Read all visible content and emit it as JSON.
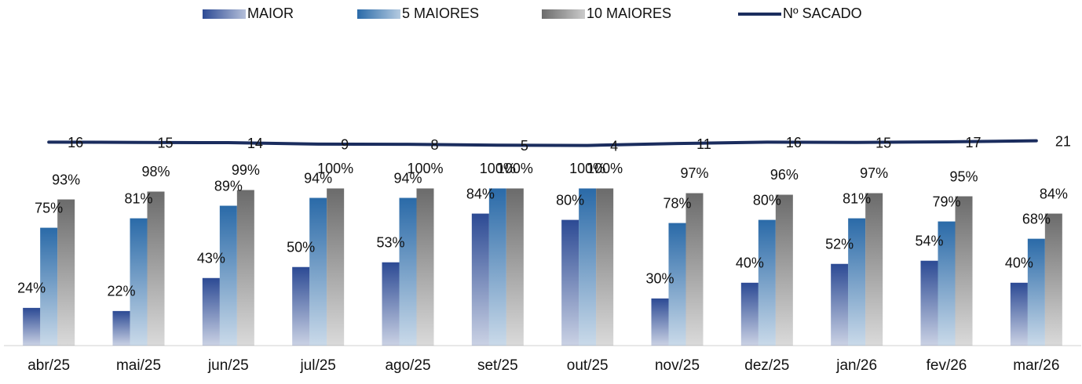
{
  "chart_data": {
    "type": "bar-line",
    "categories": [
      "abr/25",
      "mai/25",
      "jun/25",
      "jul/25",
      "ago/25",
      "set/25",
      "out/25",
      "nov/25",
      "dez/25",
      "jan/26",
      "fev/26",
      "mar/26"
    ],
    "series": [
      {
        "name": "MAIOR",
        "color": "#2c4a94",
        "type": "bar",
        "values": [
          24,
          22,
          43,
          50,
          53,
          84,
          80,
          30,
          40,
          52,
          54,
          40
        ],
        "value_labels": [
          "24%",
          "22%",
          "43%",
          "50%",
          "53%",
          "84%",
          "80%",
          "30%",
          "40%",
          "52%",
          "54%",
          "40%"
        ]
      },
      {
        "name": "5 MAIORES",
        "color": "#2a6aa8",
        "type": "bar",
        "values": [
          75,
          81,
          89,
          94,
          94,
          100,
          100,
          78,
          80,
          81,
          79,
          68
        ],
        "value_labels": [
          "75%",
          "81%",
          "89%",
          "94%",
          "94%",
          "100%",
          "100%",
          "78%",
          "80%",
          "81%",
          "79%",
          "68%"
        ]
      },
      {
        "name": "10 MAIORES",
        "color": "#6b6b6b",
        "type": "bar",
        "values": [
          93,
          98,
          99,
          100,
          100,
          100,
          100,
          97,
          96,
          97,
          95,
          84
        ],
        "value_labels": [
          "93%",
          "98%",
          "99%",
          "100%",
          "100%",
          "100%",
          "100%",
          "97%",
          "96%",
          "97%",
          "95%",
          "84%"
        ]
      },
      {
        "name": "Nº SACADO",
        "color": "#1b2d5e",
        "type": "line",
        "axis": "y2",
        "values": [
          16,
          15,
          14,
          9,
          8,
          5,
          4,
          11,
          16,
          15,
          17,
          21
        ]
      }
    ],
    "ylim": [
      0,
      190
    ],
    "y2lim": [
      -720,
      360
    ],
    "legend": "top"
  }
}
